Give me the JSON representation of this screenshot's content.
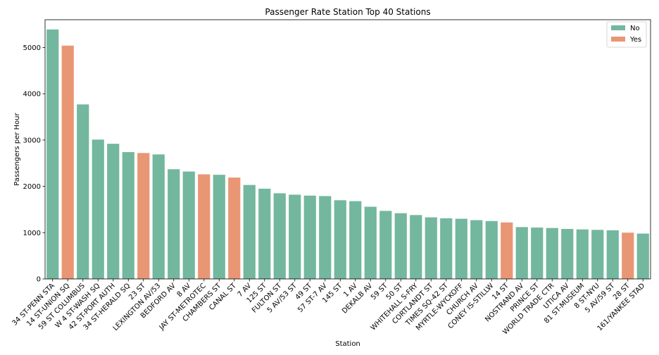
{
  "chart_data": {
    "type": "bar",
    "title": "Passenger Rate Station Top 40 Stations",
    "xlabel": "Station",
    "ylabel": "Passengers per Hour",
    "ylim": [
      0,
      5600
    ],
    "yticks": [
      0,
      1000,
      2000,
      3000,
      4000,
      5000
    ],
    "grid": false,
    "legend_position": "top-right",
    "legend": [
      {
        "label": "No",
        "color": "#73b79e"
      },
      {
        "label": "Yes",
        "color": "#e99675"
      }
    ],
    "colors": {
      "No": "#73b79e",
      "Yes": "#e99675"
    },
    "categories": [
      "34 ST-PENN STA",
      "14 ST-UNION SQ",
      "59 ST COLUMBUS",
      "W 4 ST-WASH SQ",
      "42 ST-PORT AUTH",
      "34 ST-HERALD SQ",
      "23 ST",
      "LEXINGTON AV/53",
      "BEDFORD AV",
      "8 AV",
      "JAY ST-METROTEC",
      "CHAMBERS ST",
      "CANAL ST",
      "7 AV",
      "125 ST",
      "FULTON ST",
      "5 AV/53 ST",
      "49 ST",
      "57 ST-7 AV",
      "145 ST",
      "1 AV",
      "DEKALB AV",
      "59 ST",
      "50 ST",
      "WHITEHALL S-FRY",
      "CORTLANDT ST",
      "TIMES SQ-42 ST",
      "MYRTLE-WYCKOFF",
      "CHURCH AV",
      "CONEY IS-STILLW",
      "14 ST",
      "NOSTRAND AV",
      "PRINCE ST",
      "WORLD TRADE CTR",
      "UTICA AV",
      "81 ST-MUSEUM",
      "8 ST-NYU",
      "5 AV/59 ST",
      "28 ST",
      "161/YANKEE STAD"
    ],
    "values": [
      5390,
      5040,
      3770,
      3010,
      2920,
      2740,
      2720,
      2690,
      2370,
      2320,
      2260,
      2250,
      2190,
      2030,
      1950,
      1850,
      1820,
      1800,
      1790,
      1700,
      1680,
      1560,
      1470,
      1420,
      1380,
      1330,
      1310,
      1300,
      1270,
      1250,
      1220,
      1120,
      1110,
      1100,
      1080,
      1070,
      1060,
      1050,
      1000,
      980
    ],
    "group": [
      "No",
      "Yes",
      "No",
      "No",
      "No",
      "No",
      "Yes",
      "No",
      "No",
      "No",
      "Yes",
      "No",
      "Yes",
      "No",
      "No",
      "No",
      "No",
      "No",
      "No",
      "No",
      "No",
      "No",
      "No",
      "No",
      "No",
      "No",
      "No",
      "No",
      "No",
      "No",
      "Yes",
      "No",
      "No",
      "No",
      "No",
      "No",
      "No",
      "No",
      "Yes",
      "No"
    ]
  }
}
